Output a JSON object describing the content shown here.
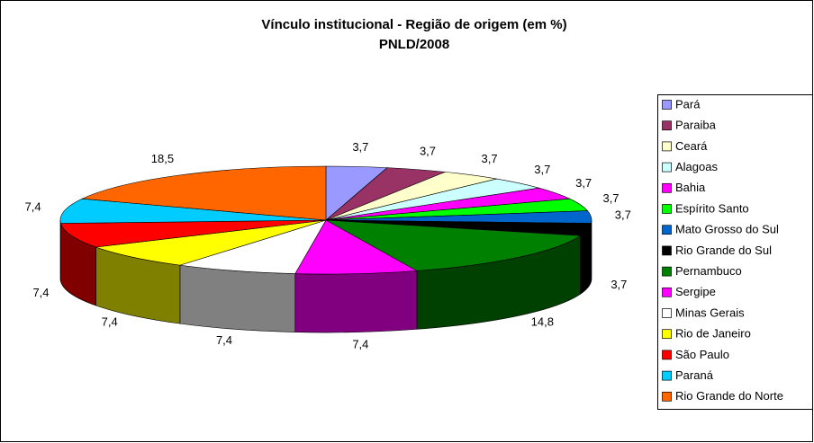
{
  "chart_data": {
    "type": "pie3d",
    "title": "Vínculo institucional - Região de origem (em %)",
    "subtitle": "PNLD/2008",
    "categories": [
      "Pará",
      "Paraiba",
      "Ceará",
      "Alagoas",
      "Bahia",
      "Espírito Santo",
      "Mato Grosso do Sul",
      "Rio Grande do Sul",
      "Pernambuco",
      "Sergipe",
      "Minas Gerais",
      "Rio de Janeiro",
      "São Paulo",
      "Paraná",
      "Rio Grande do Norte"
    ],
    "values": [
      3.7,
      3.7,
      3.7,
      3.7,
      3.7,
      3.7,
      3.7,
      3.7,
      14.8,
      7.4,
      7.4,
      7.4,
      7.4,
      7.4,
      18.5
    ],
    "value_labels": [
      "3,7",
      "3,7",
      "3,7",
      "3,7",
      "3,7",
      "3,7",
      "3,7",
      "3,7",
      "14,8",
      "7,4",
      "7,4",
      "7,4",
      "7,4",
      "7,4",
      "18,5"
    ],
    "colors": [
      "#9999ff",
      "#993366",
      "#ffffcc",
      "#ccffff",
      "#ff00ff",
      "#00ff00",
      "#0066cc",
      "#000000",
      "#008000",
      "#ff00ff",
      "#ffffff",
      "#ffff00",
      "#ff0000",
      "#00ccff",
      "#ff6600"
    ],
    "legend": "right"
  }
}
